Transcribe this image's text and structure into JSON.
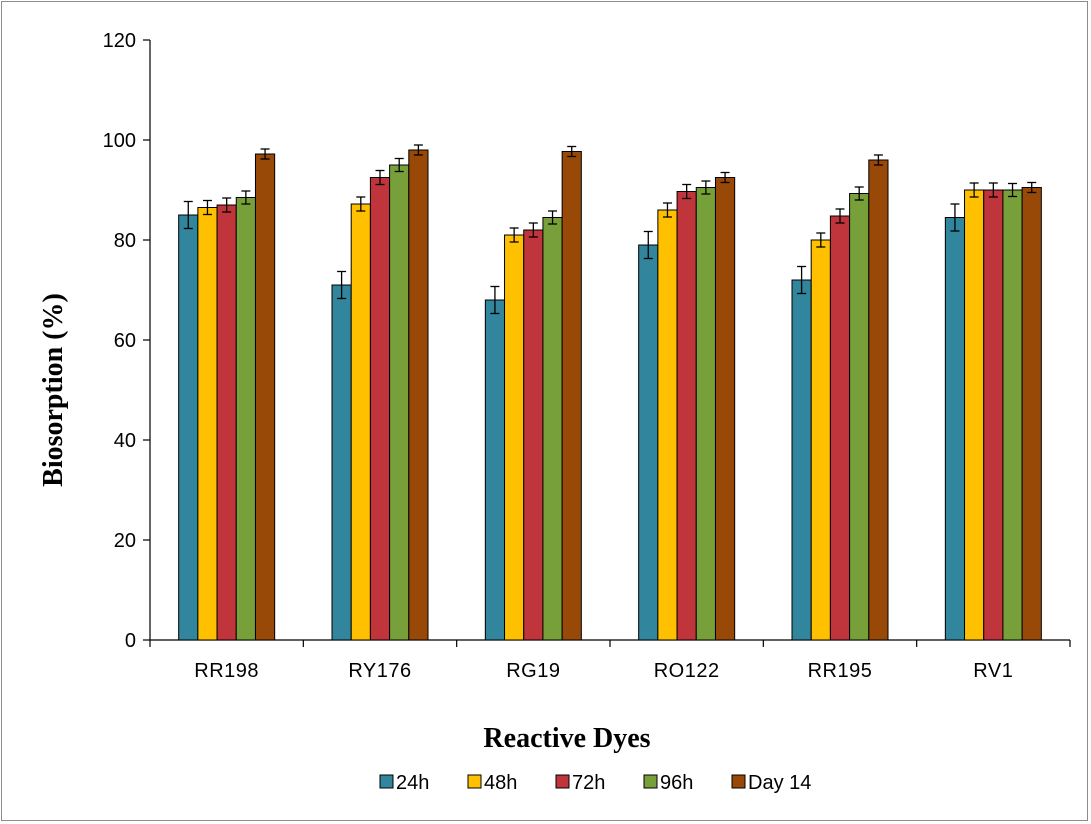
{
  "chart_data": {
    "type": "bar",
    "title": "",
    "xlabel": "Reactive Dyes",
    "ylabel": "Biosorption (%)",
    "ylim": [
      0,
      120
    ],
    "yticks": [
      0,
      20,
      40,
      60,
      80,
      100,
      120
    ],
    "categories": [
      "RR198",
      "RY176",
      "RG19",
      "RO122",
      "RR195",
      "RV1"
    ],
    "grid": false,
    "legend_position": "bottom",
    "series": [
      {
        "name": "24h",
        "color": "#31859c",
        "values": [
          85,
          71,
          68,
          79,
          72,
          84.5
        ],
        "errors": [
          2.7,
          2.7,
          2.7,
          2.7,
          2.7,
          2.7
        ]
      },
      {
        "name": "48h",
        "color": "#ffc000",
        "values": [
          86.5,
          87.2,
          81,
          86,
          80,
          90
        ],
        "errors": [
          1.4,
          1.4,
          1.4,
          1.4,
          1.4,
          1.4
        ]
      },
      {
        "name": "72h",
        "color": "#c0343c",
        "values": [
          87,
          92.5,
          82,
          89.7,
          84.8,
          90
        ],
        "errors": [
          1.4,
          1.4,
          1.4,
          1.4,
          1.4,
          1.4
        ]
      },
      {
        "name": "96h",
        "color": "#77a03a",
        "values": [
          88.5,
          95,
          84.5,
          90.5,
          89.3,
          90
        ],
        "errors": [
          1.3,
          1.3,
          1.3,
          1.3,
          1.3,
          1.3
        ]
      },
      {
        "name": "Day 14",
        "color": "#984807",
        "values": [
          97.2,
          98,
          97.7,
          92.5,
          96,
          90.5
        ],
        "errors": [
          1.0,
          1.0,
          1.0,
          1.0,
          1.0,
          1.0
        ]
      }
    ]
  }
}
